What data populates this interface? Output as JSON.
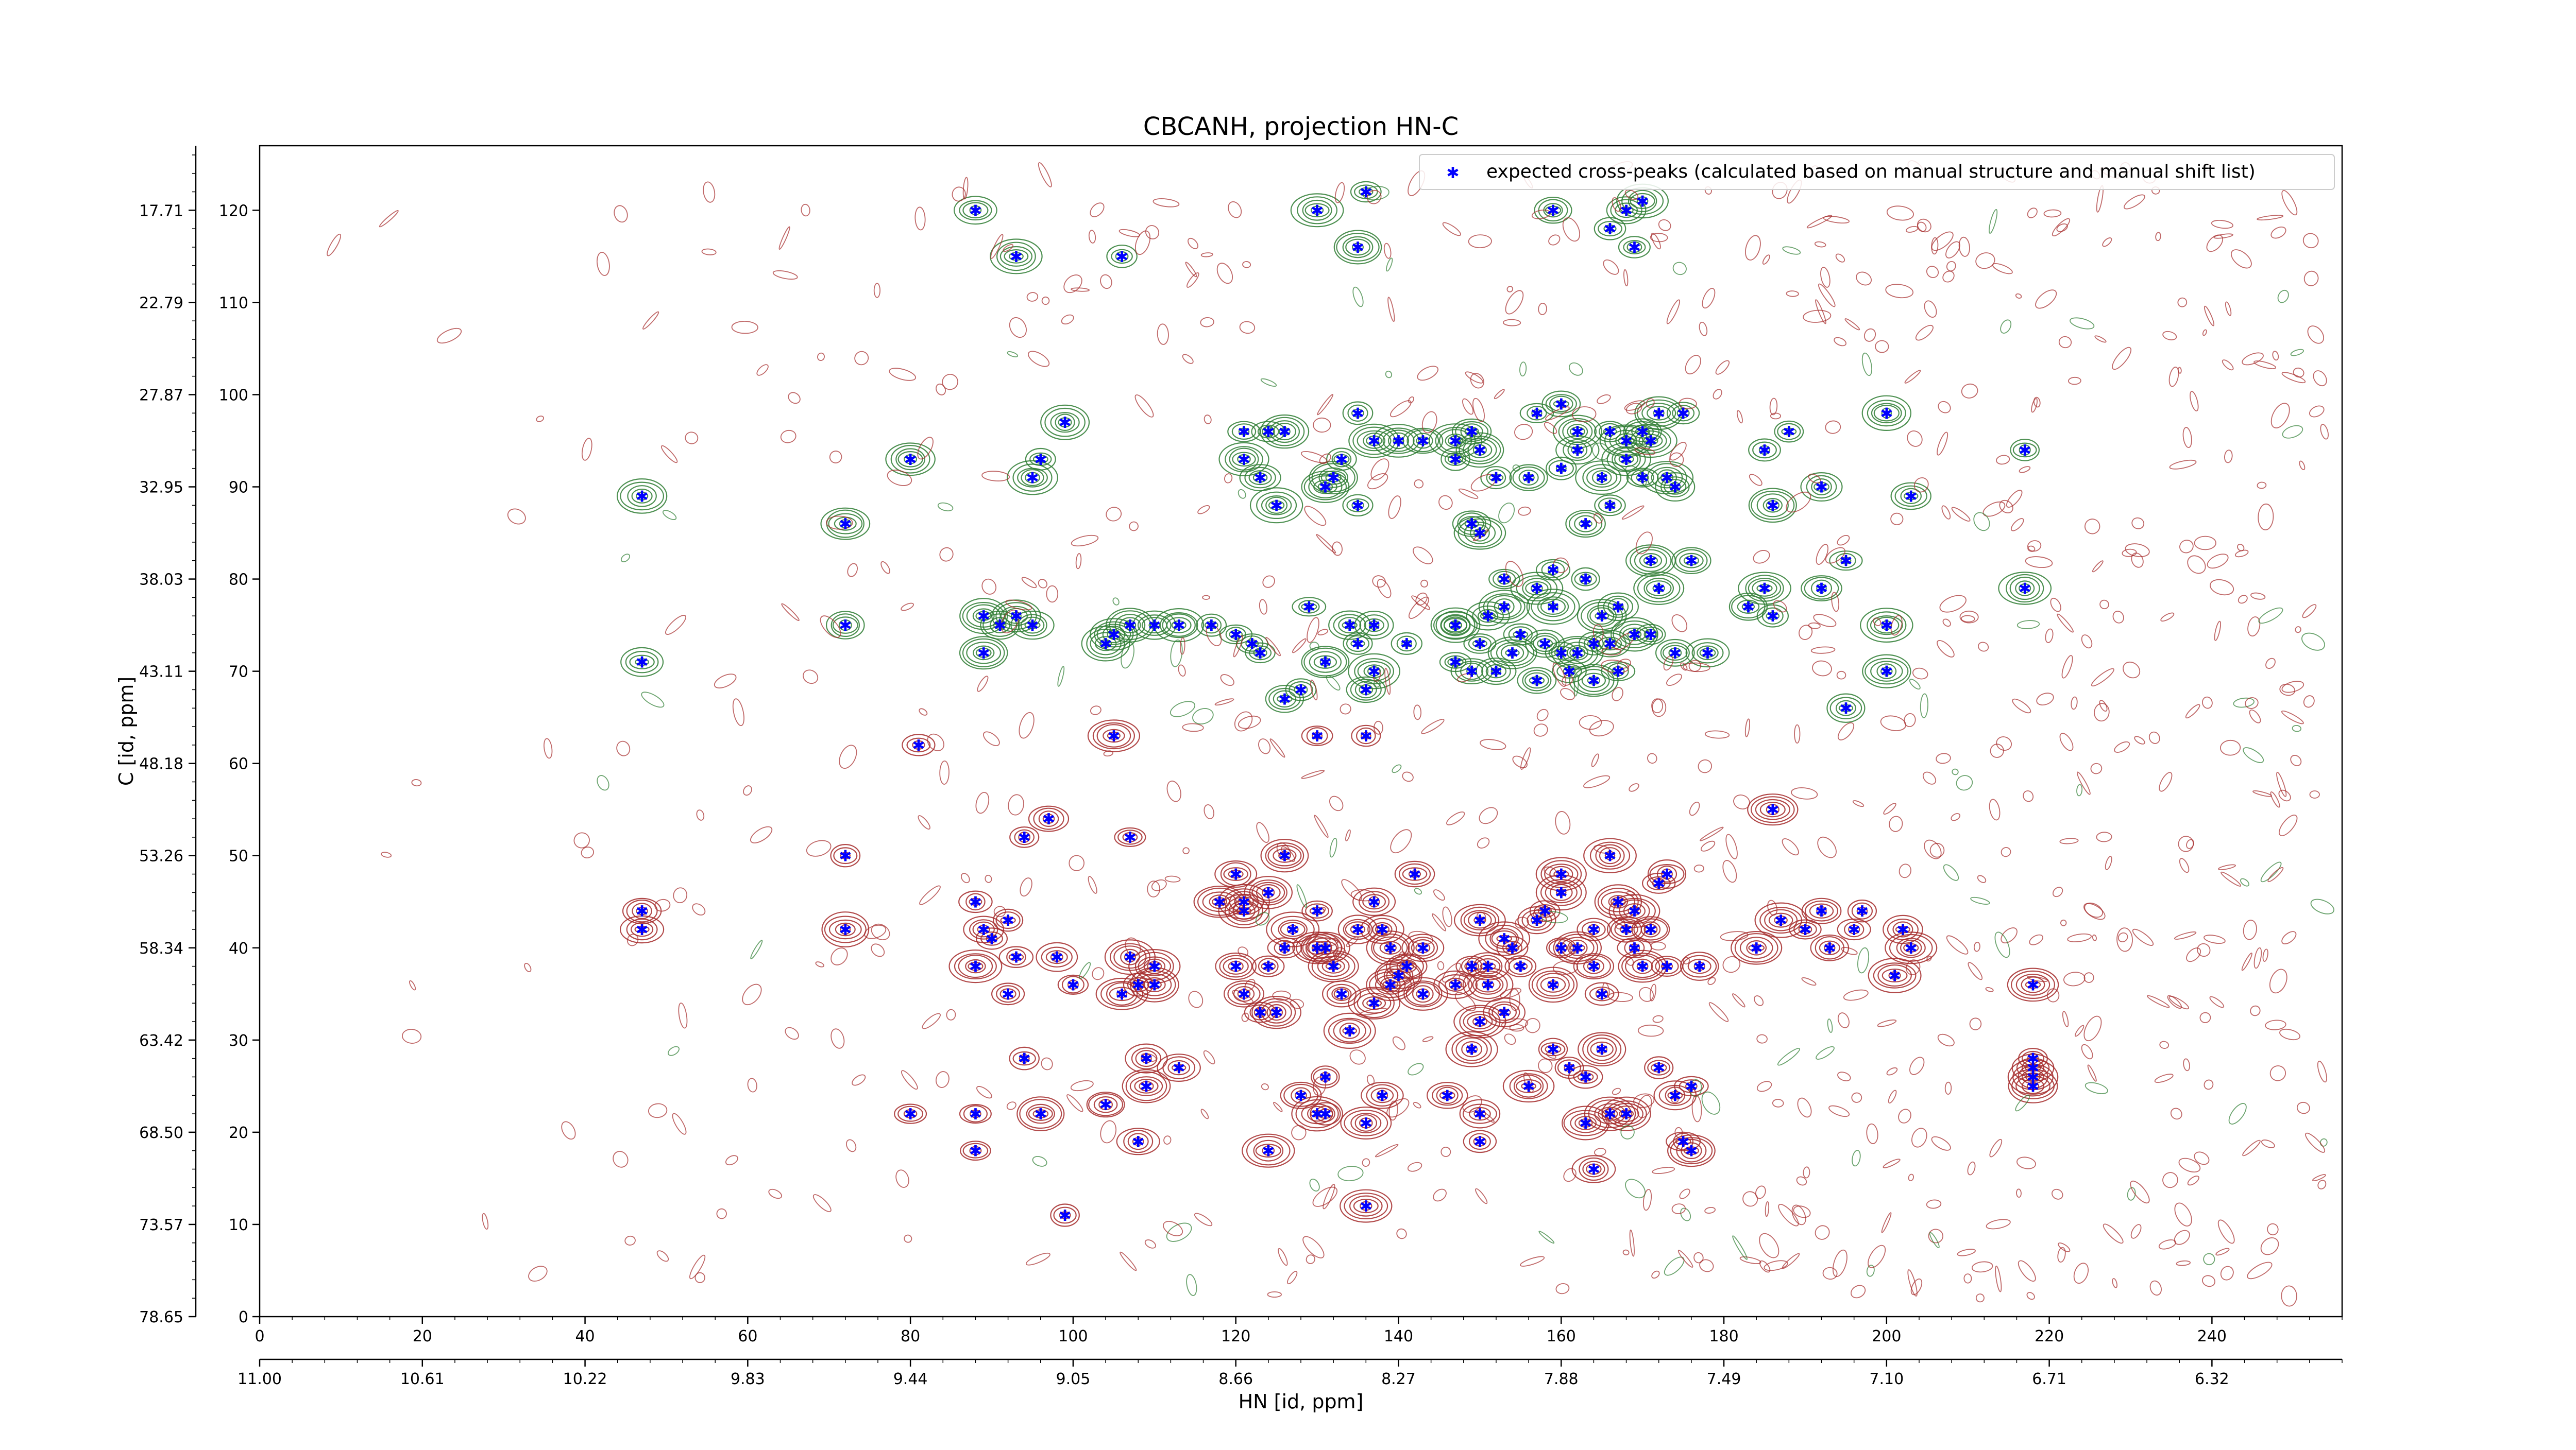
{
  "chart_data": {
    "type": "scatter",
    "title": "CBCANH, projection HN-C",
    "xlabel": "HN [id, ppm]",
    "ylabel": "C [id, ppm]",
    "xlim": [
      0,
      256
    ],
    "ylim": [
      0,
      127
    ],
    "x_ticks": [
      0,
      20,
      40,
      60,
      80,
      100,
      120,
      140,
      160,
      180,
      200,
      220,
      240
    ],
    "y_ticks": [
      0,
      10,
      20,
      30,
      40,
      50,
      60,
      70,
      80,
      90,
      100,
      110,
      120
    ],
    "secondary_x_ticks": [
      {
        "pos": 0,
        "label": "11.00"
      },
      {
        "pos": 20,
        "label": "10.61"
      },
      {
        "pos": 40,
        "label": "10.22"
      },
      {
        "pos": 60,
        "label": "9.83"
      },
      {
        "pos": 80,
        "label": "9.44"
      },
      {
        "pos": 100,
        "label": "9.05"
      },
      {
        "pos": 120,
        "label": "8.66"
      },
      {
        "pos": 140,
        "label": "8.27"
      },
      {
        "pos": 160,
        "label": "7.88"
      },
      {
        "pos": 180,
        "label": "7.49"
      },
      {
        "pos": 200,
        "label": "7.10"
      },
      {
        "pos": 220,
        "label": "6.71"
      },
      {
        "pos": 240,
        "label": "6.32"
      }
    ],
    "secondary_y_ticks": [
      {
        "pos": 0,
        "label": "78.65"
      },
      {
        "pos": 10,
        "label": "73.57"
      },
      {
        "pos": 20,
        "label": "68.50"
      },
      {
        "pos": 30,
        "label": "63.42"
      },
      {
        "pos": 40,
        "label": "58.34"
      },
      {
        "pos": 50,
        "label": "53.26"
      },
      {
        "pos": 60,
        "label": "48.18"
      },
      {
        "pos": 70,
        "label": "43.11"
      },
      {
        "pos": 80,
        "label": "38.03"
      },
      {
        "pos": 90,
        "label": "32.95"
      },
      {
        "pos": 100,
        "label": "27.87"
      },
      {
        "pos": 110,
        "label": "22.79"
      },
      {
        "pos": 120,
        "label": "17.71"
      }
    ],
    "legend": {
      "placement": "top-right",
      "entries": [
        "expected cross-peaks (calculated based on manual structure and manual shift list)"
      ]
    },
    "colors": {
      "peaks": "#0000ff",
      "positive_contours": "#2e7d32",
      "negative_contours": "#a52a2a"
    },
    "series": [
      {
        "name": "expected cross-peaks (calculated based on manual structure and manual shift list)",
        "points": [
          [
            88,
            120
          ],
          [
            93,
            115
          ],
          [
            106,
            115
          ],
          [
            130,
            120
          ],
          [
            135,
            116
          ],
          [
            136,
            122
          ],
          [
            159,
            120
          ],
          [
            166,
            118
          ],
          [
            168,
            120
          ],
          [
            170,
            121
          ],
          [
            169,
            116
          ],
          [
            99,
            97
          ],
          [
            96,
            93
          ],
          [
            95,
            91
          ],
          [
            80,
            93
          ],
          [
            47,
            89
          ],
          [
            72,
            86
          ],
          [
            121,
            96
          ],
          [
            124,
            96
          ],
          [
            126,
            96
          ],
          [
            121,
            93
          ],
          [
            123,
            91
          ],
          [
            125,
            88
          ],
          [
            135,
            98
          ],
          [
            137,
            95
          ],
          [
            133,
            93
          ],
          [
            132,
            91
          ],
          [
            131,
            90
          ],
          [
            135,
            88
          ],
          [
            140,
            95
          ],
          [
            143,
            95
          ],
          [
            147,
            95
          ],
          [
            149,
            96
          ],
          [
            147,
            93
          ],
          [
            150,
            94
          ],
          [
            149,
            86
          ],
          [
            150,
            85
          ],
          [
            152,
            91
          ],
          [
            156,
            91
          ],
          [
            157,
            98
          ],
          [
            160,
            99
          ],
          [
            162,
            96
          ],
          [
            162,
            94
          ],
          [
            160,
            92
          ],
          [
            166,
            88
          ],
          [
            163,
            86
          ],
          [
            166,
            96
          ],
          [
            168,
            95
          ],
          [
            170,
            96
          ],
          [
            172,
            98
          ],
          [
            175,
            98
          ],
          [
            171,
            95
          ],
          [
            168,
            93
          ],
          [
            170,
            91
          ],
          [
            165,
            91
          ],
          [
            173,
            91
          ],
          [
            174,
            90
          ],
          [
            185,
            94
          ],
          [
            188,
            96
          ],
          [
            192,
            90
          ],
          [
            200,
            98
          ],
          [
            203,
            89
          ],
          [
            217,
            94
          ],
          [
            186,
            88
          ],
          [
            72,
            75
          ],
          [
            89,
            72
          ],
          [
            89,
            76
          ],
          [
            91,
            75
          ],
          [
            93,
            76
          ],
          [
            95,
            75
          ],
          [
            104,
            73
          ],
          [
            105,
            74
          ],
          [
            107,
            75
          ],
          [
            110,
            75
          ],
          [
            113,
            75
          ],
          [
            117,
            75
          ],
          [
            120,
            74
          ],
          [
            122,
            73
          ],
          [
            123,
            72
          ],
          [
            126,
            67
          ],
          [
            129,
            77
          ],
          [
            135,
            73
          ],
          [
            131,
            71
          ],
          [
            134,
            75
          ],
          [
            137,
            75
          ],
          [
            141,
            73
          ],
          [
            137,
            70
          ],
          [
            130,
            63
          ],
          [
            136,
            68
          ],
          [
            147,
            75
          ],
          [
            150,
            73
          ],
          [
            151,
            76
          ],
          [
            153,
            77
          ],
          [
            154,
            72
          ],
          [
            155,
            74
          ],
          [
            152,
            70
          ],
          [
            157,
            79
          ],
          [
            159,
            77
          ],
          [
            158,
            73
          ],
          [
            160,
            72
          ],
          [
            162,
            72
          ],
          [
            164,
            73
          ],
          [
            165,
            76
          ],
          [
            167,
            77
          ],
          [
            166,
            73
          ],
          [
            169,
            74
          ],
          [
            171,
            74
          ],
          [
            171,
            82
          ],
          [
            172,
            79
          ],
          [
            176,
            82
          ],
          [
            163,
            80
          ],
          [
            159,
            81
          ],
          [
            153,
            80
          ],
          [
            147,
            75
          ],
          [
            147,
            71
          ],
          [
            149,
            70
          ],
          [
            157,
            69
          ],
          [
            161,
            70
          ],
          [
            164,
            69
          ],
          [
            167,
            70
          ],
          [
            174,
            72
          ],
          [
            178,
            72
          ],
          [
            183,
            77
          ],
          [
            185,
            79
          ],
          [
            186,
            76
          ],
          [
            192,
            79
          ],
          [
            195,
            82
          ],
          [
            200,
            75
          ],
          [
            200,
            70
          ],
          [
            195,
            66
          ],
          [
            217,
            79
          ],
          [
            47,
            71
          ],
          [
            81,
            62
          ],
          [
            105,
            63
          ],
          [
            128,
            68
          ],
          [
            136,
            63
          ],
          [
            72,
            50
          ],
          [
            72,
            42
          ],
          [
            88,
            45
          ],
          [
            89,
            42
          ],
          [
            90,
            41
          ],
          [
            92,
            43
          ],
          [
            93,
            39
          ],
          [
            88,
            38
          ],
          [
            92,
            35
          ],
          [
            94,
            52
          ],
          [
            97,
            54
          ],
          [
            98,
            39
          ],
          [
            100,
            36
          ],
          [
            106,
            35
          ],
          [
            108,
            36
          ],
          [
            107,
            52
          ],
          [
            107,
            39
          ],
          [
            110,
            38
          ],
          [
            110,
            36
          ],
          [
            118,
            45
          ],
          [
            120,
            48
          ],
          [
            121,
            45
          ],
          [
            121,
            44
          ],
          [
            120,
            38
          ],
          [
            121,
            35
          ],
          [
            124,
            46
          ],
          [
            124,
            38
          ],
          [
            123,
            33
          ],
          [
            125,
            33
          ],
          [
            126,
            40
          ],
          [
            126,
            50
          ],
          [
            127,
            42
          ],
          [
            130,
            44
          ],
          [
            130,
            40
          ],
          [
            131,
            40
          ],
          [
            132,
            38
          ],
          [
            133,
            35
          ],
          [
            134,
            31
          ],
          [
            135,
            42
          ],
          [
            137,
            45
          ],
          [
            138,
            42
          ],
          [
            139,
            40
          ],
          [
            139,
            36
          ],
          [
            137,
            34
          ],
          [
            140,
            37
          ],
          [
            141,
            38
          ],
          [
            142,
            48
          ],
          [
            143,
            40
          ],
          [
            143,
            35
          ],
          [
            147,
            36
          ],
          [
            149,
            38
          ],
          [
            150,
            43
          ],
          [
            151,
            38
          ],
          [
            151,
            36
          ],
          [
            153,
            41
          ],
          [
            154,
            40
          ],
          [
            155,
            38
          ],
          [
            157,
            43
          ],
          [
            158,
            44
          ],
          [
            160,
            40
          ],
          [
            159,
            36
          ],
          [
            160,
            46
          ],
          [
            160,
            48
          ],
          [
            162,
            40
          ],
          [
            164,
            42
          ],
          [
            164,
            38
          ],
          [
            165,
            35
          ],
          [
            166,
            50
          ],
          [
            167,
            45
          ],
          [
            168,
            42
          ],
          [
            169,
            44
          ],
          [
            169,
            40
          ],
          [
            170,
            38
          ],
          [
            171,
            42
          ],
          [
            172,
            47
          ],
          [
            173,
            48
          ],
          [
            173,
            38
          ],
          [
            177,
            38
          ],
          [
            184,
            40
          ],
          [
            187,
            43
          ],
          [
            190,
            42
          ],
          [
            192,
            44
          ],
          [
            193,
            40
          ],
          [
            196,
            42
          ],
          [
            197,
            44
          ],
          [
            202,
            42
          ],
          [
            203,
            40
          ],
          [
            201,
            37
          ],
          [
            218,
            36
          ],
          [
            47,
            44
          ],
          [
            47,
            42
          ],
          [
            94,
            28
          ],
          [
            113,
            27
          ],
          [
            109,
            28
          ],
          [
            109,
            25
          ],
          [
            104,
            23
          ],
          [
            80,
            22
          ],
          [
            88,
            22
          ],
          [
            88,
            18
          ],
          [
            96,
            22
          ],
          [
            108,
            19
          ],
          [
            99,
            11
          ],
          [
            124,
            18
          ],
          [
            128,
            24
          ],
          [
            131,
            22
          ],
          [
            131,
            26
          ],
          [
            136,
            21
          ],
          [
            138,
            24
          ],
          [
            146,
            24
          ],
          [
            150,
            22
          ],
          [
            150,
            19
          ],
          [
            156,
            25
          ],
          [
            161,
            27
          ],
          [
            163,
            26
          ],
          [
            163,
            21
          ],
          [
            166,
            22
          ],
          [
            168,
            22
          ],
          [
            172,
            27
          ],
          [
            174,
            24
          ],
          [
            176,
            25
          ],
          [
            175,
            19
          ],
          [
            176,
            18
          ],
          [
            164,
            16
          ],
          [
            130,
            22
          ],
          [
            136,
            12
          ],
          [
            218,
            28
          ],
          [
            218,
            27
          ],
          [
            218,
            26
          ],
          [
            218,
            25
          ],
          [
            186,
            55
          ],
          [
            149,
            29
          ],
          [
            150,
            32
          ],
          [
            153,
            33
          ],
          [
            159,
            29
          ],
          [
            165,
            29
          ]
        ]
      }
    ]
  }
}
